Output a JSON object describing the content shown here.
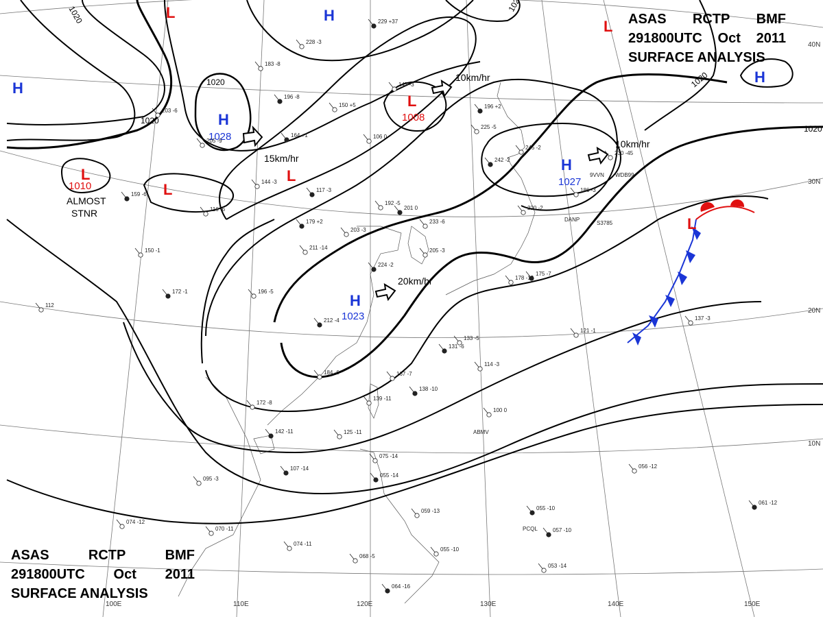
{
  "header": {
    "line1": [
      "ASAS",
      "RCTP",
      "BMF"
    ],
    "line2": [
      "291800UTC",
      "Oct",
      "2011"
    ],
    "line3": "SURFACE ANALYSIS"
  },
  "colors": {
    "high": "#1a35d6",
    "low": "#e01010",
    "isobar": "#000000",
    "coast": "#555555",
    "grid": "#777777"
  },
  "pressure_systems": [
    {
      "type": "H",
      "value": "1028"
    },
    {
      "type": "H",
      "value": "1023"
    },
    {
      "type": "H",
      "value": "1027"
    },
    {
      "type": "H",
      "value": ""
    },
    {
      "type": "H",
      "value": ""
    },
    {
      "type": "H",
      "value": ""
    },
    {
      "type": "L",
      "value": "1010"
    },
    {
      "type": "L",
      "value": "1008"
    },
    {
      "type": "L",
      "value": ""
    },
    {
      "type": "L",
      "value": ""
    },
    {
      "type": "L",
      "value": ""
    },
    {
      "type": "L",
      "value": ""
    },
    {
      "type": "L",
      "value": ""
    }
  ],
  "motion_vectors": [
    "15km/hr",
    "10km/hr",
    "20km/hr",
    "10km/hr"
  ],
  "isobar_labels": [
    "1020",
    "1020",
    "1020",
    "1020",
    "1020",
    "1020"
  ],
  "notes": {
    "almost": "ALMOST",
    "stnr": "STNR"
  },
  "latitude_labels": [
    "40N",
    "30N",
    "20N",
    "10N"
  ],
  "longitude_labels": [
    "100E",
    "110E",
    "120E",
    "130E",
    "140E",
    "150E"
  ],
  "stations": [
    {
      "plot": "229 +37"
    },
    {
      "plot": "228 -3"
    },
    {
      "plot": "183 -8"
    },
    {
      "plot": "196 -8"
    },
    {
      "plot": "150 +5"
    },
    {
      "plot": "147 -3"
    },
    {
      "plot": "196 +2"
    },
    {
      "plot": "225 -5"
    },
    {
      "plot": "245 -2"
    },
    {
      "plot": "242 -2"
    },
    {
      "plot": "230 -45"
    },
    {
      "plot": "186 -3"
    },
    {
      "plot": "164 +1"
    },
    {
      "plot": "205 -9"
    },
    {
      "plot": "203 -6"
    },
    {
      "plot": "159 -6"
    },
    {
      "plot": "116 -6"
    },
    {
      "plot": "144 -3"
    },
    {
      "plot": "117 -3"
    },
    {
      "plot": "106 0"
    },
    {
      "plot": "192 -5"
    },
    {
      "plot": "201 0"
    },
    {
      "plot": "233 -6"
    },
    {
      "plot": "203 -3"
    },
    {
      "plot": "179 +2"
    },
    {
      "plot": "211 -14"
    },
    {
      "plot": "205 -3"
    },
    {
      "plot": "224 -2"
    },
    {
      "plot": "220 -2"
    },
    {
      "plot": "196 -5"
    },
    {
      "plot": "212 -4"
    },
    {
      "plot": "184 -6"
    },
    {
      "plot": "133 -5"
    },
    {
      "plot": "131 -6"
    },
    {
      "plot": "114 -3"
    },
    {
      "plot": "167 -7"
    },
    {
      "plot": "138 -10"
    },
    {
      "plot": "139 -11"
    },
    {
      "plot": "172 -8"
    },
    {
      "plot": "142 -11"
    },
    {
      "plot": "125 -11"
    },
    {
      "plot": "100 0"
    },
    {
      "plot": "107 -14"
    },
    {
      "plot": "095 -3"
    },
    {
      "plot": "075 -14"
    },
    {
      "plot": "055 -14"
    },
    {
      "plot": "059 -13"
    },
    {
      "plot": "055 -10"
    },
    {
      "plot": "057 -10"
    },
    {
      "plot": "053 -14"
    },
    {
      "plot": "056 -12"
    },
    {
      "plot": "061 -12"
    },
    {
      "plot": "074 -11"
    },
    {
      "plot": "068 -5"
    },
    {
      "plot": "064 -16"
    },
    {
      "plot": "070 -11"
    },
    {
      "plot": "074 -12"
    },
    {
      "plot": "055 -10"
    },
    {
      "plot": "137 -3"
    },
    {
      "plot": "121 -1"
    },
    {
      "plot": "175 -7"
    },
    {
      "plot": "178 -13"
    },
    {
      "plot": "112 "
    },
    {
      "plot": "172 -1"
    },
    {
      "plot": "150 -1"
    }
  ],
  "station_ids": [
    "DANP",
    "S3785",
    "PCQL",
    "ABMV",
    "9VVN",
    "WDB99"
  ]
}
